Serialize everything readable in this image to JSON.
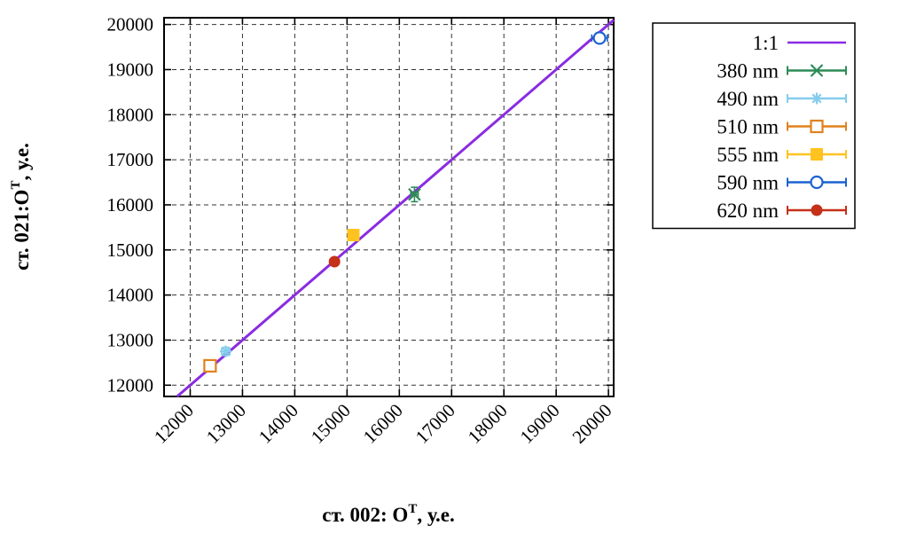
{
  "chart_data": {
    "type": "scatter",
    "title": "",
    "xlabel": "ст. 002: O^T, у.е.",
    "ylabel": "ст. 021:O^T, у.е.",
    "xlabel_prefix": "ст. 002: O",
    "xlabel_sup": "T",
    "xlabel_suffix": ", у.е.",
    "ylabel_prefix": "ст. 021:O",
    "ylabel_sup": "T",
    "ylabel_suffix": ", у.е.",
    "xlim": [
      11500,
      20100
    ],
    "ylim": [
      11750,
      20150
    ],
    "xticks": [
      12000,
      13000,
      14000,
      15000,
      16000,
      17000,
      18000,
      19000,
      20000
    ],
    "yticks": [
      12000,
      13000,
      14000,
      15000,
      16000,
      17000,
      18000,
      19000,
      20000
    ],
    "grid": true,
    "legend_position": "outside-top-right",
    "reference_line": {
      "label": "1:1",
      "color": "#8a2be2",
      "slope": 1,
      "intercept": 0
    },
    "series": [
      {
        "name": "380 nm",
        "color": "#2e8b57",
        "marker": "cross",
        "points": [
          {
            "x": 16290,
            "y": 16230,
            "xerr": 70,
            "yerr": 160
          }
        ]
      },
      {
        "name": "490 nm",
        "color": "#85cdec",
        "marker": "asterisk",
        "points": [
          {
            "x": 12680,
            "y": 12750,
            "xerr": 80,
            "yerr": 90
          }
        ]
      },
      {
        "name": "510 nm",
        "color": "#e0821e",
        "marker": "open-square",
        "points": [
          {
            "x": 12380,
            "y": 12430,
            "xerr": 90,
            "yerr": 90
          }
        ]
      },
      {
        "name": "555 nm",
        "color": "#ffc320",
        "marker": "filled-square",
        "points": [
          {
            "x": 15120,
            "y": 15330,
            "xerr": 70,
            "yerr": 70
          }
        ]
      },
      {
        "name": "590 nm",
        "color": "#1b62d0",
        "marker": "open-circle",
        "points": [
          {
            "x": 19830,
            "y": 19700,
            "xerr": 150,
            "yerr": 90
          }
        ]
      },
      {
        "name": "620 nm",
        "color": "#c43018",
        "marker": "filled-circle",
        "points": [
          {
            "x": 14760,
            "y": 14740,
            "xerr": 70,
            "yerr": 70
          }
        ]
      }
    ]
  }
}
